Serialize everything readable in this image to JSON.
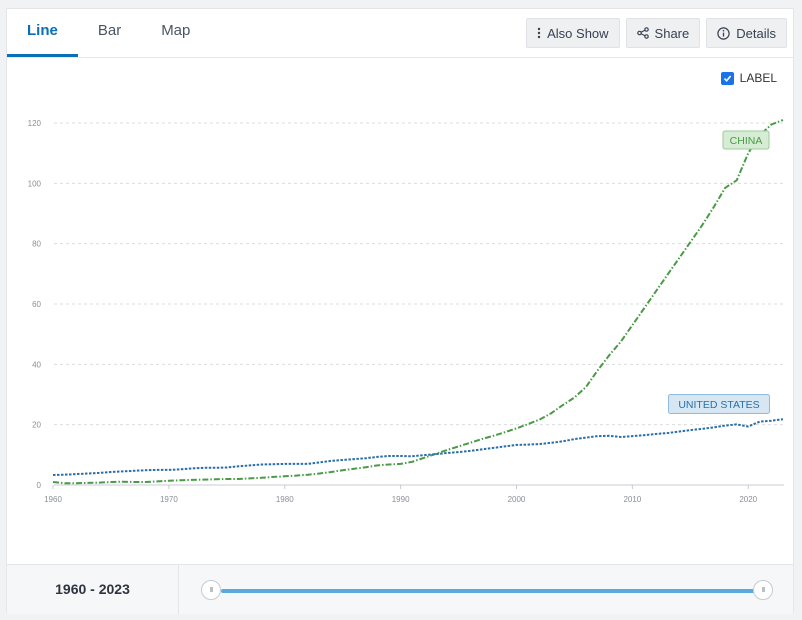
{
  "tabs": [
    {
      "label": "Line",
      "active": true
    },
    {
      "label": "Bar",
      "active": false
    },
    {
      "label": "Map",
      "active": false
    }
  ],
  "toolbar": {
    "also_show": {
      "label": "Also Show",
      "icon": "vertical-dots-icon"
    },
    "share": {
      "label": "Share",
      "icon": "share-icon"
    },
    "details": {
      "label": "Details",
      "icon": "info-circle-icon"
    }
  },
  "label_toggle": {
    "label": "LABEL",
    "checked": true
  },
  "footer": {
    "range_text": "1960 - 2023",
    "slider": {
      "start": 1960,
      "end": 2023,
      "handle_glyph": "III"
    }
  },
  "colors": {
    "accent": "#0a6fb7",
    "china": "#4a9a47",
    "united_states": "#2a6ea6",
    "slider": "#5aa9dd"
  },
  "chart_data": {
    "type": "line",
    "xlim": [
      1960,
      2023
    ],
    "ylim": [
      0,
      120
    ],
    "x_ticks": [
      "1960",
      "1970",
      "1980",
      "1990",
      "2000",
      "2010",
      "2020"
    ],
    "y_ticks": [
      "0",
      "20",
      "40",
      "60",
      "80",
      "100",
      "120"
    ],
    "grid": true,
    "series": [
      {
        "name": "CHINA",
        "color": "#4a9a47",
        "x": [
          1960,
          1961,
          1962,
          1963,
          1964,
          1965,
          1966,
          1967,
          1968,
          1969,
          1970,
          1971,
          1972,
          1973,
          1974,
          1975,
          1976,
          1977,
          1978,
          1979,
          1980,
          1981,
          1982,
          1983,
          1984,
          1985,
          1986,
          1987,
          1988,
          1989,
          1990,
          1991,
          1992,
          1993,
          1994,
          1995,
          1996,
          1997,
          1998,
          1999,
          2000,
          2001,
          2002,
          2003,
          2004,
          2005,
          2006,
          2007,
          2008,
          2009,
          2010,
          2011,
          2012,
          2013,
          2014,
          2015,
          2016,
          2017,
          2018,
          2019,
          2020,
          2021,
          2022,
          2023
        ],
        "values": [
          1.0,
          0.6,
          0.6,
          0.7,
          0.8,
          1.0,
          1.1,
          1.0,
          1.0,
          1.2,
          1.4,
          1.6,
          1.7,
          1.8,
          1.9,
          2.0,
          2.0,
          2.2,
          2.4,
          2.7,
          2.9,
          3.1,
          3.4,
          3.8,
          4.3,
          4.9,
          5.4,
          5.9,
          6.5,
          6.8,
          7.0,
          7.7,
          9.0,
          10.3,
          11.6,
          12.8,
          14.0,
          15.2,
          16.3,
          17.5,
          18.8,
          20.2,
          21.7,
          23.8,
          26.5,
          29.0,
          32.5,
          38.0,
          43.0,
          47.5,
          53.0,
          58.5,
          64.0,
          69.5,
          75.0,
          80.5,
          86.0,
          92.0,
          98.5,
          101.0,
          110.0,
          116.0,
          119.5,
          121.0
        ]
      },
      {
        "name": "UNITED STATES",
        "color": "#2a6ea6",
        "x": [
          1960,
          1961,
          1962,
          1963,
          1964,
          1965,
          1966,
          1967,
          1968,
          1969,
          1970,
          1971,
          1972,
          1973,
          1974,
          1975,
          1976,
          1977,
          1978,
          1979,
          1980,
          1981,
          1982,
          1983,
          1984,
          1985,
          1986,
          1987,
          1988,
          1989,
          1990,
          1991,
          1992,
          1993,
          1994,
          1995,
          1996,
          1997,
          1998,
          1999,
          2000,
          2001,
          2002,
          2003,
          2004,
          2005,
          2006,
          2007,
          2008,
          2009,
          2010,
          2011,
          2012,
          2013,
          2014,
          2015,
          2016,
          2017,
          2018,
          2019,
          2020,
          2021,
          2022,
          2023
        ],
        "values": [
          3.3,
          3.4,
          3.6,
          3.8,
          4.0,
          4.3,
          4.5,
          4.7,
          4.9,
          5.0,
          5.0,
          5.2,
          5.5,
          5.7,
          5.7,
          5.8,
          6.2,
          6.5,
          6.8,
          6.9,
          7.0,
          7.0,
          7.0,
          7.5,
          8.0,
          8.3,
          8.6,
          8.9,
          9.3,
          9.6,
          9.6,
          9.5,
          9.9,
          10.2,
          10.6,
          10.9,
          11.3,
          11.8,
          12.3,
          12.8,
          13.3,
          13.4,
          13.6,
          14.0,
          14.5,
          15.2,
          15.7,
          16.2,
          16.3,
          15.9,
          16.2,
          16.5,
          16.9,
          17.2,
          17.7,
          18.2,
          18.6,
          19.1,
          19.7,
          20.1,
          19.4,
          21.0,
          21.3,
          21.8
        ]
      }
    ],
    "labels": [
      {
        "text": "CHINA",
        "series": "CHINA"
      },
      {
        "text": "UNITED STATES",
        "series": "UNITED STATES"
      }
    ]
  }
}
